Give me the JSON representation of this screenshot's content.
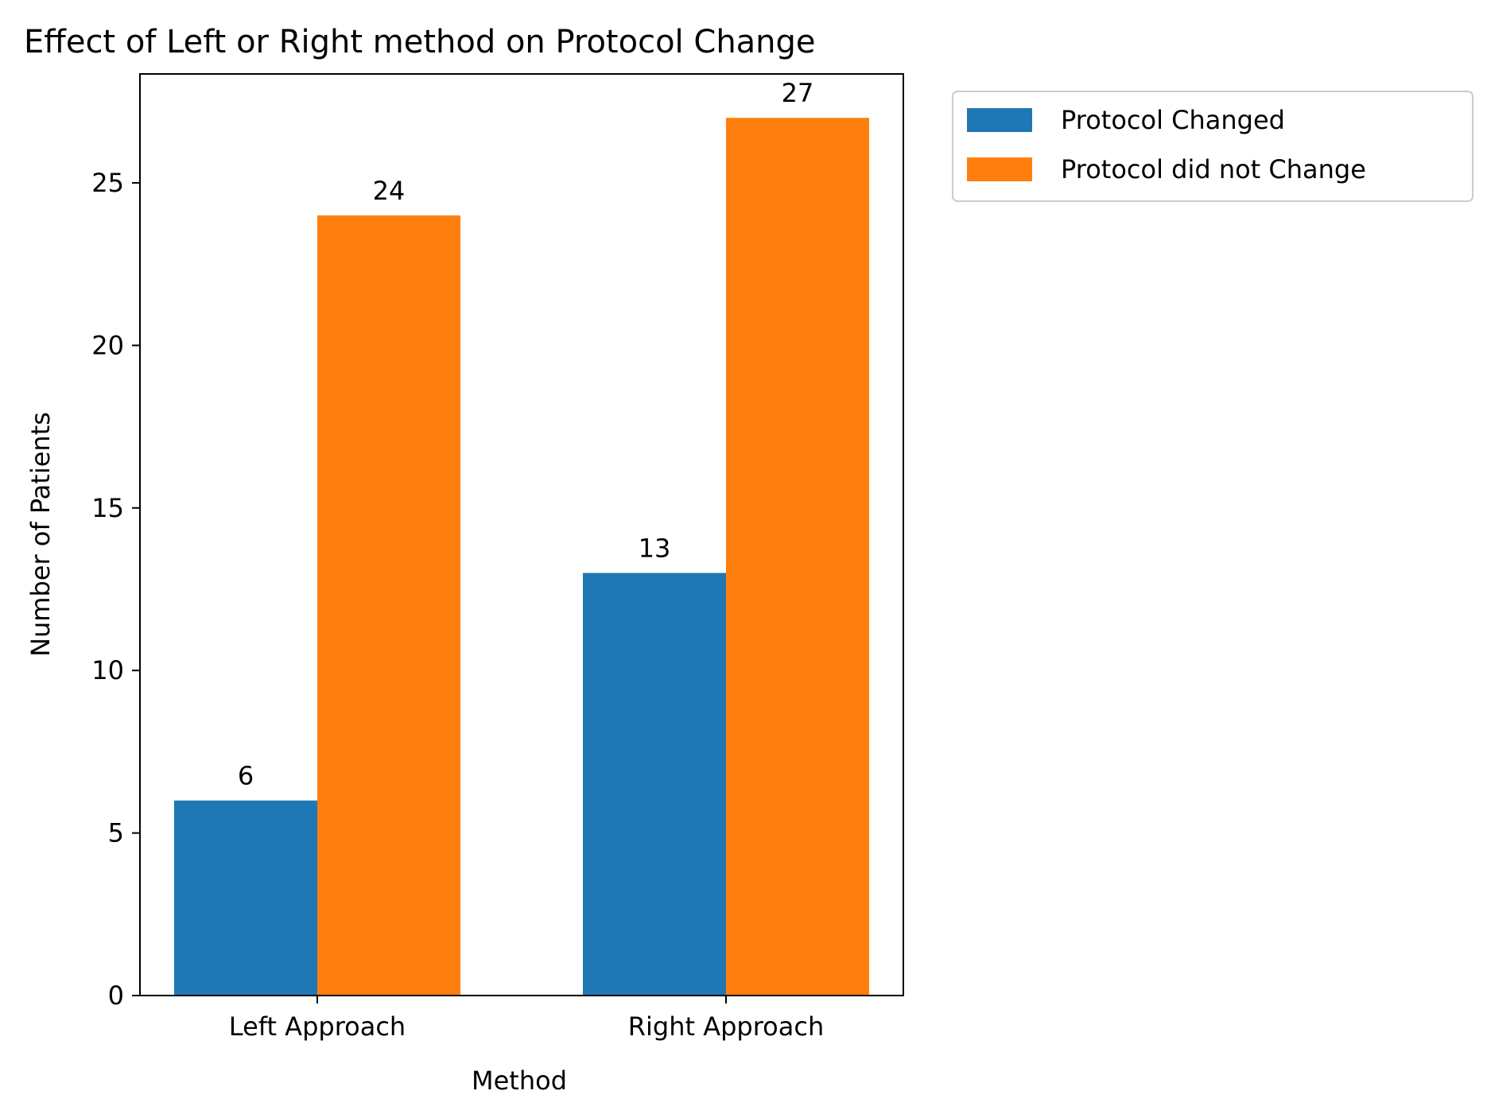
{
  "chart_data": {
    "type": "bar",
    "title": "Effect of Left or Right method on Protocol Change",
    "xlabel": "Method",
    "ylabel": "Number of Patients",
    "categories": [
      "Left Approach",
      "Right Approach"
    ],
    "series": [
      {
        "name": "Protocol Changed",
        "values": [
          6,
          13
        ],
        "color": "#1f77b4"
      },
      {
        "name": "Protocol did not Change",
        "values": [
          24,
          27
        ],
        "color": "#ff7f0e"
      }
    ],
    "ylim": [
      0,
      28.35
    ],
    "yticks": [
      0,
      5,
      10,
      15,
      20,
      25
    ],
    "grid": false,
    "legend_position": "outside top-right",
    "data_labels": true
  }
}
